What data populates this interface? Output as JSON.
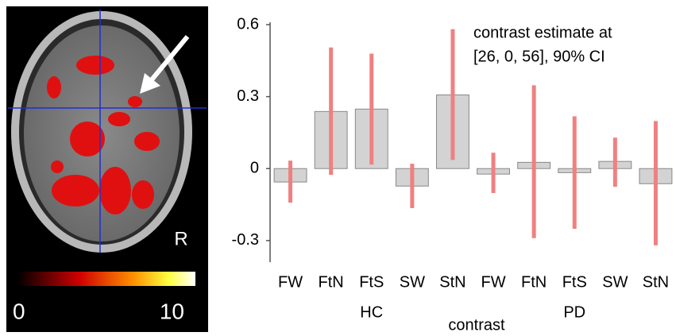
{
  "brain_image": {
    "side_label": "R",
    "colorbar_labels": [
      0,
      10
    ]
  },
  "chart_data": {
    "type": "bar",
    "annotation": [
      "contrast estimate at",
      "[26, 0, 56], 90% CI"
    ],
    "x_label": "contrast",
    "categories": [
      "FW",
      "FtN",
      "FtS",
      "SW",
      "StN",
      "FW",
      "FtN",
      "FtS",
      "SW",
      "StN"
    ],
    "groups": [
      "HC",
      "PD"
    ],
    "values": [
      -0.056,
      0.238,
      0.248,
      -0.073,
      0.307,
      -0.023,
      0.026,
      -0.017,
      0.03,
      -0.063
    ],
    "ci_low": [
      -0.142,
      -0.026,
      0.017,
      -0.165,
      0.036,
      -0.102,
      -0.29,
      -0.251,
      -0.076,
      -0.32
    ],
    "ci_high": [
      0.033,
      0.505,
      0.479,
      0.02,
      0.581,
      0.066,
      0.347,
      0.218,
      0.129,
      0.198
    ],
    "color": "#d3d3d3",
    "ci_color": "#f08080",
    "ylim": [
      -0.39,
      0.61
    ],
    "yticks": [
      -0.3,
      0,
      0.3,
      0.6
    ],
    "grid": false
  }
}
